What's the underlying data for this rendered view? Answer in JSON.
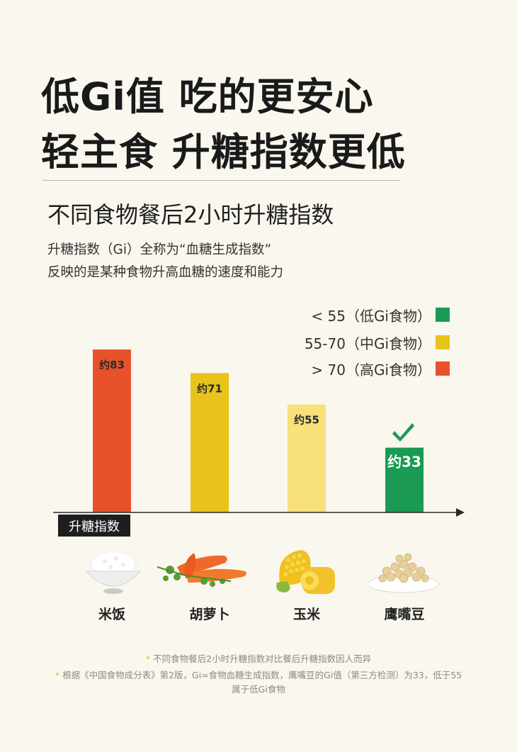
{
  "header": {
    "line1": "低Gi值 吃的更安心",
    "line2": "轻主食 升糖指数更低"
  },
  "subtitle": "不同食物餐后2小时升糖指数",
  "description": {
    "line1": "升糖指数（Gi）全称为“血糖生成指数”",
    "line2": "反映的是某种食物升高血糖的速度和能力"
  },
  "legend": [
    {
      "label": "< 55（低Gi食物）",
      "color": "#1a9a52"
    },
    {
      "label": "55-70（中Gi食物）",
      "color": "#e8c31a"
    },
    {
      "label": "> 70（高Gi食物）",
      "color": "#e8522a"
    }
  ],
  "axis_tag": "升糖指数",
  "chart_data": {
    "type": "bar",
    "categories": [
      "米饭",
      "胡萝卜",
      "玉米",
      "鹰嘴豆"
    ],
    "values": [
      83,
      71,
      55,
      33
    ],
    "data_labels": [
      "约83",
      "约71",
      "约55",
      "约33"
    ],
    "colors": [
      "#e8522a",
      "#e8c31a",
      "#f8e07a",
      "#1a9a52"
    ],
    "highlight": "鹰嘴豆",
    "ylabel": "升糖指数"
  },
  "foods": [
    {
      "label": "米饭",
      "icon": "rice-bowl-icon"
    },
    {
      "label": "胡萝卜",
      "icon": "carrot-icon"
    },
    {
      "label": "玉米",
      "icon": "corn-icon"
    },
    {
      "label": "鹰嘴豆",
      "icon": "chickpea-bowl-icon"
    }
  ],
  "footnotes": {
    "note1": "不同食物餐后2小时升糖指数对比餐后升糖指数因人而异",
    "note2_line1": "根据《中国食物成分表》第2版，Gi=食物血糖生成指数，鹰嘴豆的Gi值（第三方检测）为33，低于55",
    "note2_line2": "属于低Gi食物"
  }
}
